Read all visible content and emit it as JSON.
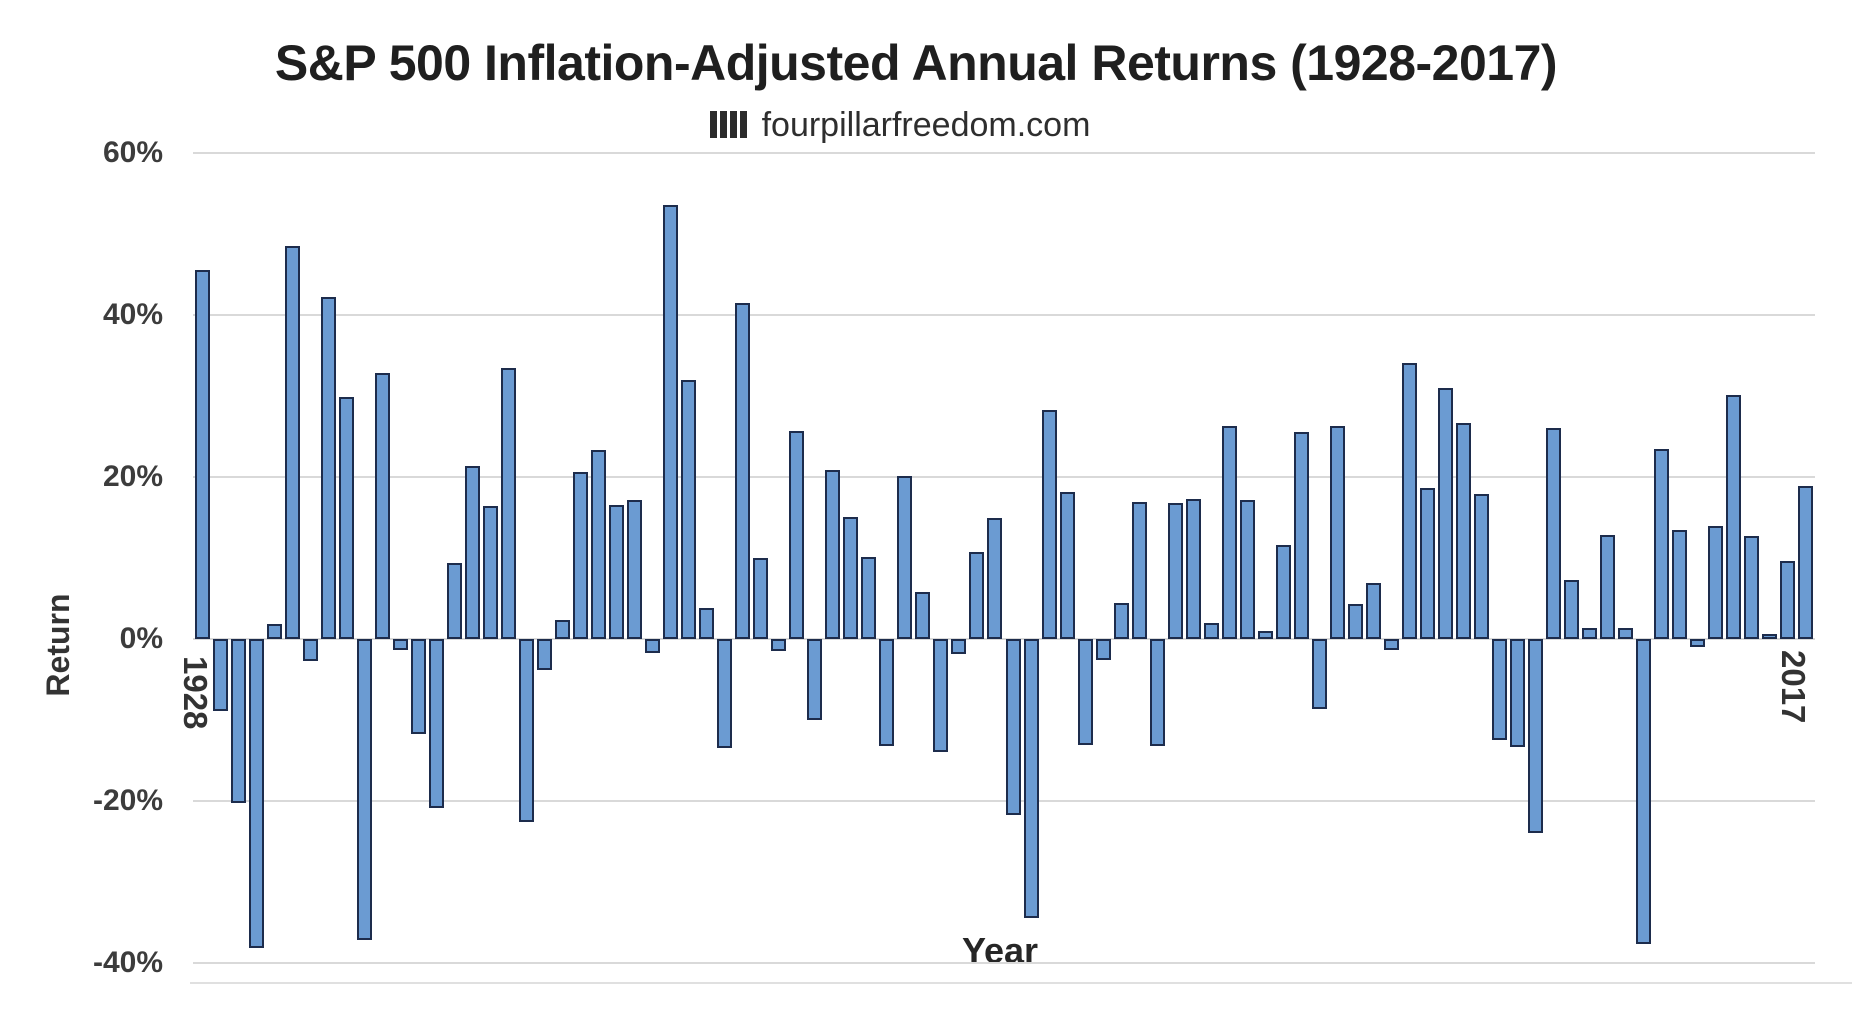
{
  "chart_data": {
    "type": "bar",
    "title": "S&P 500 Inflation-Adjusted Annual Returns (1928-2017)",
    "subtitle": "fourpillarfreedom.com",
    "subtitle_icon": "bar-chart-logo-icon",
    "xlabel": "Year",
    "ylabel": "Return",
    "x_axis_labels": [
      "1928",
      "2017"
    ],
    "y_ticks": [
      {
        "value": 60,
        "label": "60%"
      },
      {
        "value": 40,
        "label": "40%"
      },
      {
        "value": 20,
        "label": "20%"
      },
      {
        "value": 0,
        "label": "0%"
      },
      {
        "value": -20,
        "label": "-20%"
      },
      {
        "value": -40,
        "label": "-40%"
      }
    ],
    "ylim": [
      -40,
      60
    ],
    "grid": true,
    "legend": false,
    "colors": {
      "bar_fill": "#6b9bd2",
      "bar_border": "#1d2c4c",
      "gridline": "#d9d9d9",
      "title_text": "#1f1f1f",
      "axis_text": "#3c3c3c"
    },
    "years": [
      1928,
      1929,
      1930,
      1931,
      1932,
      1933,
      1934,
      1935,
      1936,
      1937,
      1938,
      1939,
      1940,
      1941,
      1942,
      1943,
      1944,
      1945,
      1946,
      1947,
      1948,
      1949,
      1950,
      1951,
      1952,
      1953,
      1954,
      1955,
      1956,
      1957,
      1958,
      1959,
      1960,
      1961,
      1962,
      1963,
      1964,
      1965,
      1966,
      1967,
      1968,
      1969,
      1970,
      1971,
      1972,
      1973,
      1974,
      1975,
      1976,
      1977,
      1978,
      1979,
      1980,
      1981,
      1982,
      1983,
      1984,
      1985,
      1986,
      1987,
      1988,
      1989,
      1990,
      1991,
      1992,
      1993,
      1994,
      1995,
      1996,
      1997,
      1998,
      1999,
      2000,
      2001,
      2002,
      2003,
      2004,
      2005,
      2006,
      2007,
      2008,
      2009,
      2010,
      2011,
      2012,
      2013,
      2014,
      2015,
      2016,
      2017
    ],
    "values": [
      45.6,
      -8.9,
      -20.2,
      -38.1,
      1.9,
      48.5,
      -2.7,
      42.2,
      29.9,
      -37.1,
      32.9,
      -1.4,
      -11.7,
      -20.9,
      9.4,
      21.3,
      16.4,
      33.4,
      -22.6,
      -3.8,
      2.4,
      20.6,
      23.3,
      16.5,
      17.1,
      -1.7,
      53.6,
      32.0,
      3.8,
      -13.5,
      41.5,
      10.0,
      -1.5,
      25.7,
      -10.0,
      20.9,
      15.1,
      10.1,
      -13.2,
      20.1,
      5.8,
      -14.0,
      -1.8,
      10.8,
      14.9,
      -21.7,
      -34.5,
      28.3,
      18.1,
      -13.1,
      -2.6,
      4.5,
      16.9,
      -13.2,
      16.8,
      17.3,
      2.0,
      26.3,
      17.1,
      1.0,
      11.6,
      25.5,
      -8.6,
      26.3,
      4.3,
      6.9,
      -1.3,
      34.1,
      18.6,
      31.0,
      26.7,
      17.9,
      -12.5,
      -13.3,
      -23.9,
      26.1,
      7.3,
      1.4,
      12.9,
      1.4,
      -37.6,
      23.5,
      13.4,
      -1.0,
      13.9,
      30.1,
      12.7,
      0.6,
      9.6,
      18.9
    ]
  }
}
